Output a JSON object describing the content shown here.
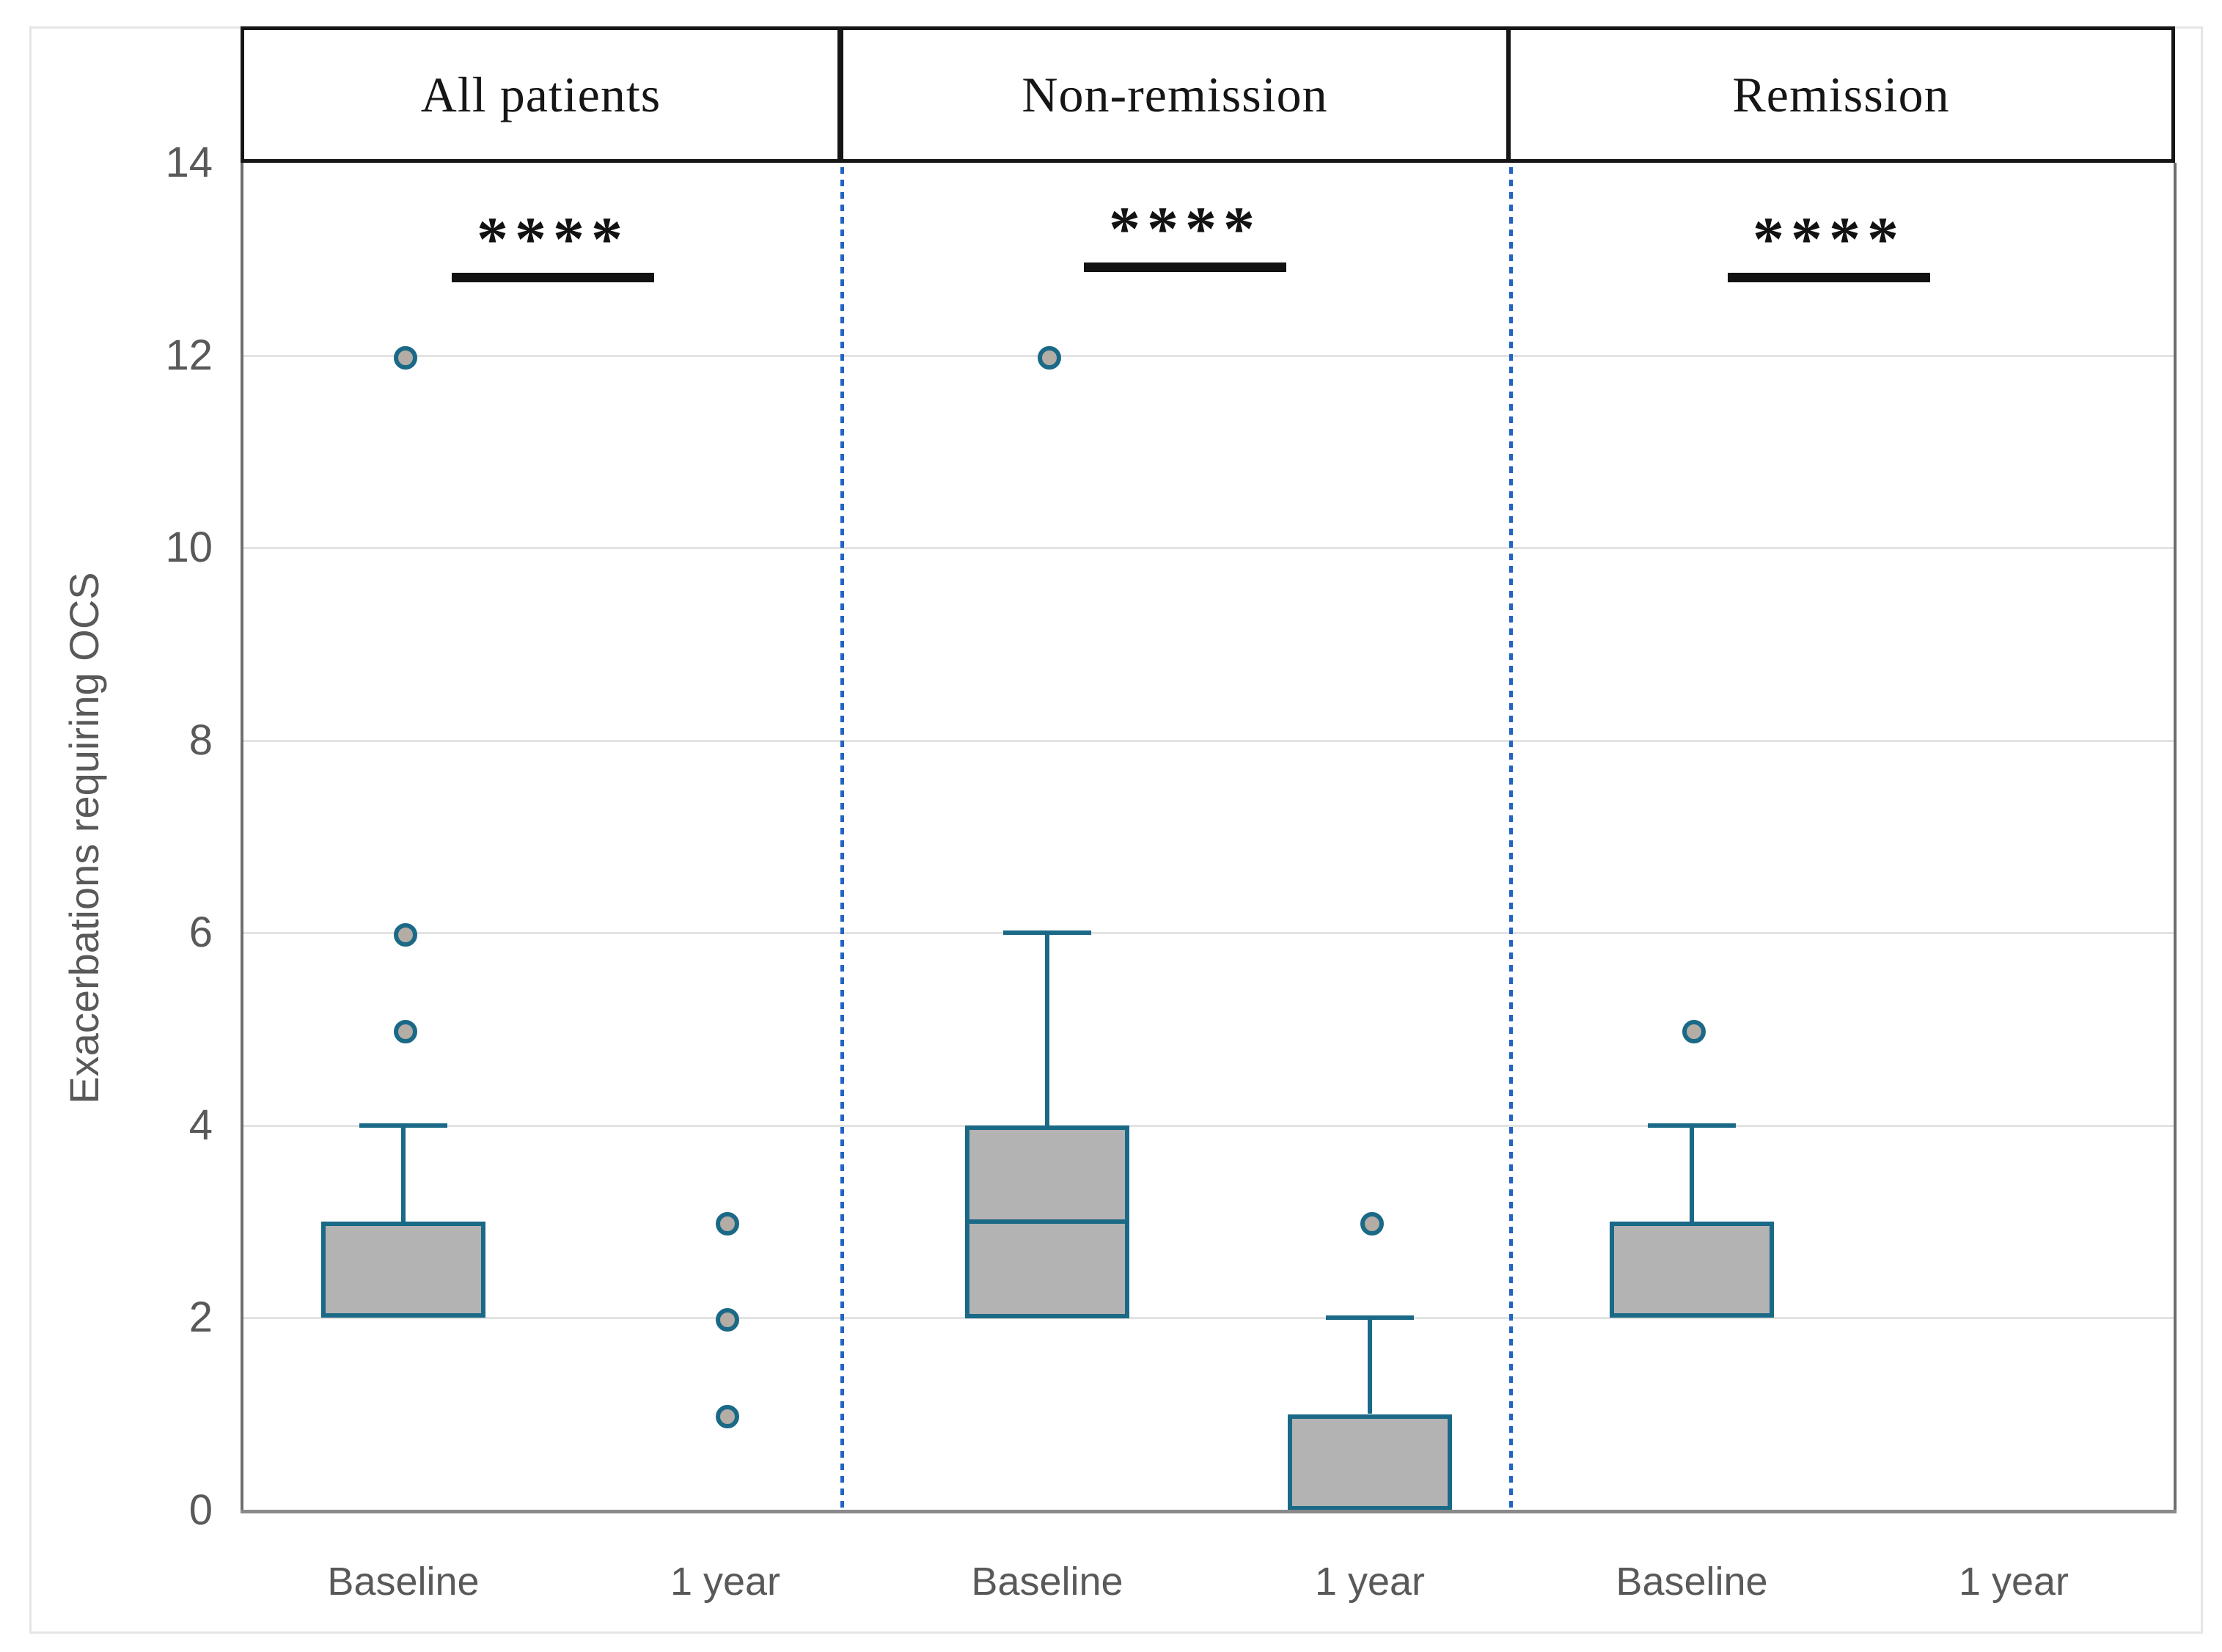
{
  "figure_title": null,
  "chart_data": {
    "type": "box",
    "ylabel": "Exacerbations requiring OCS",
    "ylim": [
      0,
      14
    ],
    "yticks": [
      0,
      2,
      4,
      6,
      8,
      10,
      12,
      14
    ],
    "grid": "horizontal",
    "x_categories_per_panel": [
      "Baseline",
      "1 year"
    ],
    "panels": [
      {
        "title": "All patients",
        "significance": "****",
        "boxes": [
          {
            "category": "Baseline",
            "q1": 2,
            "median": 3,
            "q3": 3,
            "whisker_low": 2,
            "whisker_high": 4,
            "outliers": [
              5,
              6,
              12
            ]
          },
          {
            "category": "1 year",
            "q1": 0,
            "median": 0,
            "q3": 0,
            "whisker_low": 0,
            "whisker_high": 0,
            "outliers": [
              1,
              2,
              3
            ]
          }
        ]
      },
      {
        "title": "Non-remission",
        "significance": "****",
        "boxes": [
          {
            "category": "Baseline",
            "q1": 2,
            "median": 3,
            "q3": 4,
            "whisker_low": 2,
            "whisker_high": 6,
            "outliers": [
              12
            ]
          },
          {
            "category": "1 year",
            "q1": 0,
            "median": 0,
            "q3": 1,
            "whisker_low": 0,
            "whisker_high": 2,
            "outliers": [
              3
            ]
          }
        ]
      },
      {
        "title": "Remission",
        "significance": "****",
        "boxes": [
          {
            "category": "Baseline",
            "q1": 2,
            "median": 3,
            "q3": 3,
            "whisker_low": 2,
            "whisker_high": 4,
            "outliers": [
              5
            ]
          },
          {
            "category": "1 year",
            "q1": 0,
            "median": 0,
            "q3": 0,
            "whisker_low": 0,
            "whisker_high": 0,
            "outliers": []
          }
        ]
      }
    ]
  },
  "colors": {
    "box_border_teal": "#1a6987",
    "box_fill_gray": "#b3b3b3",
    "outlier_fill": "#b3ada6",
    "panel_divider_blue": "#2263c4",
    "gridline": "#e3e3e3",
    "axis_gray": "#6e6e6e",
    "axis_bottom_gray": "#8a8a8a",
    "label_gray": "#595959",
    "header_ink": "#161616"
  }
}
